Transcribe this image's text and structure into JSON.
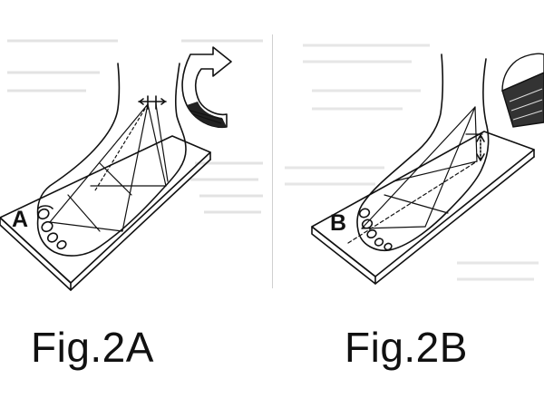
{
  "figure_a": {
    "panel_letter": "A",
    "caption": "Fig.2A",
    "rotation_arrow_icon": "curved-rotation-arrow-icon"
  },
  "figure_b": {
    "panel_letter": "B",
    "caption": "Fig.2B",
    "wedge_icon": "tilt-wedge-icon"
  },
  "colors": {
    "ink": "#111111",
    "background": "#ffffff",
    "faint_text": "#d8d8d8"
  }
}
